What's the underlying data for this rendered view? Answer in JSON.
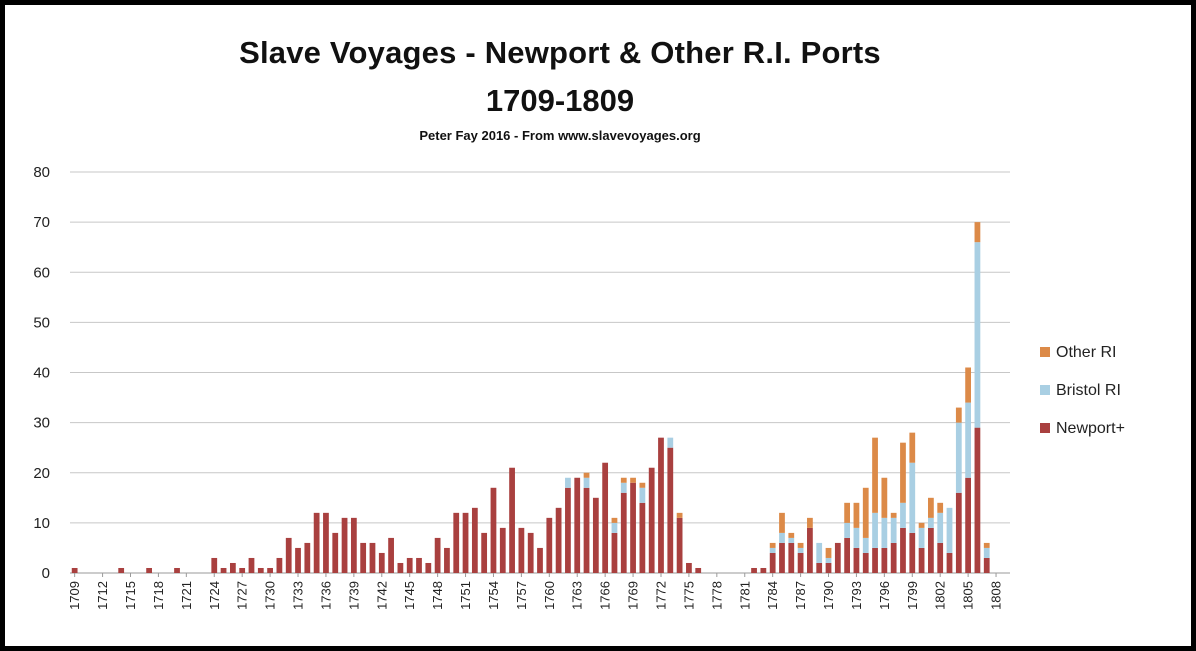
{
  "chart_data": {
    "type": "bar",
    "stacked": true,
    "title": "Slave Voyages - Newport & Other R.I. Ports",
    "title_line2": "1709-1809",
    "subtitle": "Peter Fay 2016 - From www.slavevoyages.org",
    "xlabel": "",
    "ylabel": "",
    "ylim": [
      0,
      80
    ],
    "yticks": [
      0,
      10,
      20,
      30,
      40,
      50,
      60,
      70,
      80
    ],
    "grid": true,
    "legend_position": "right",
    "x_start": 1709,
    "x_end": 1809,
    "x_tick_labels": [
      "1709",
      "1712",
      "1715",
      "1718",
      "1721",
      "1724",
      "1727",
      "1730",
      "1733",
      "1736",
      "1739",
      "1742",
      "1745",
      "1748",
      "1751",
      "1754",
      "1757",
      "1760",
      "1763",
      "1766",
      "1769",
      "1772",
      "1775",
      "1778",
      "1781",
      "1784",
      "1787",
      "1790",
      "1793",
      "1796",
      "1799",
      "1802",
      "1805",
      "1808"
    ],
    "colors": {
      "Newport+": "#a9403f",
      "Bristol RI": "#a9cfe3",
      "Other RI": "#dc8a48"
    },
    "legend": [
      "Other RI",
      "Bristol RI",
      "Newport+"
    ],
    "series": [
      {
        "name": "Newport+",
        "values": [
          1,
          0,
          0,
          0,
          0,
          1,
          0,
          0,
          1,
          0,
          0,
          1,
          0,
          0,
          0,
          3,
          1,
          2,
          1,
          3,
          1,
          1,
          3,
          7,
          5,
          6,
          12,
          12,
          8,
          11,
          11,
          6,
          6,
          4,
          7,
          2,
          3,
          3,
          2,
          7,
          5,
          12,
          12,
          13,
          8,
          17,
          9,
          21,
          9,
          8,
          5,
          11,
          13,
          17,
          19,
          17,
          15,
          22,
          8,
          16,
          18,
          14,
          21,
          27,
          25,
          11,
          2,
          1,
          0,
          0,
          0,
          0,
          0,
          1,
          1,
          4,
          6,
          6,
          4,
          9,
          2,
          2,
          6,
          7,
          5,
          4,
          5,
          5,
          6,
          9,
          8,
          5,
          9,
          6,
          4,
          16,
          19,
          29,
          3,
          0
        ]
      },
      {
        "name": "Bristol RI",
        "values": [
          0,
          0,
          0,
          0,
          0,
          0,
          0,
          0,
          0,
          0,
          0,
          0,
          0,
          0,
          0,
          0,
          0,
          0,
          0,
          0,
          0,
          0,
          0,
          0,
          0,
          0,
          0,
          0,
          0,
          0,
          0,
          0,
          0,
          0,
          0,
          0,
          0,
          0,
          0,
          0,
          0,
          0,
          0,
          0,
          0,
          0,
          0,
          0,
          0,
          0,
          0,
          0,
          0,
          2,
          0,
          2,
          0,
          0,
          2,
          2,
          0,
          3,
          0,
          0,
          2,
          0,
          0,
          0,
          0,
          0,
          0,
          0,
          0,
          0,
          0,
          1,
          2,
          1,
          1,
          0,
          4,
          1,
          0,
          3,
          4,
          3,
          7,
          6,
          5,
          5,
          14,
          4,
          2,
          6,
          9,
          14,
          15,
          37,
          2,
          0
        ]
      },
      {
        "name": "Other RI",
        "values": [
          0,
          0,
          0,
          0,
          0,
          0,
          0,
          0,
          0,
          0,
          0,
          0,
          0,
          0,
          0,
          0,
          0,
          0,
          0,
          0,
          0,
          0,
          0,
          0,
          0,
          0,
          0,
          0,
          0,
          0,
          0,
          0,
          0,
          0,
          0,
          0,
          0,
          0,
          0,
          0,
          0,
          0,
          0,
          0,
          0,
          0,
          0,
          0,
          0,
          0,
          0,
          0,
          0,
          0,
          0,
          1,
          0,
          0,
          1,
          1,
          1,
          1,
          0,
          0,
          0,
          1,
          0,
          0,
          0,
          0,
          0,
          0,
          0,
          0,
          0,
          1,
          4,
          1,
          1,
          2,
          0,
          2,
          0,
          4,
          5,
          10,
          15,
          8,
          1,
          12,
          6,
          1,
          4,
          2,
          0,
          3,
          7,
          4,
          1,
          0
        ]
      }
    ]
  }
}
